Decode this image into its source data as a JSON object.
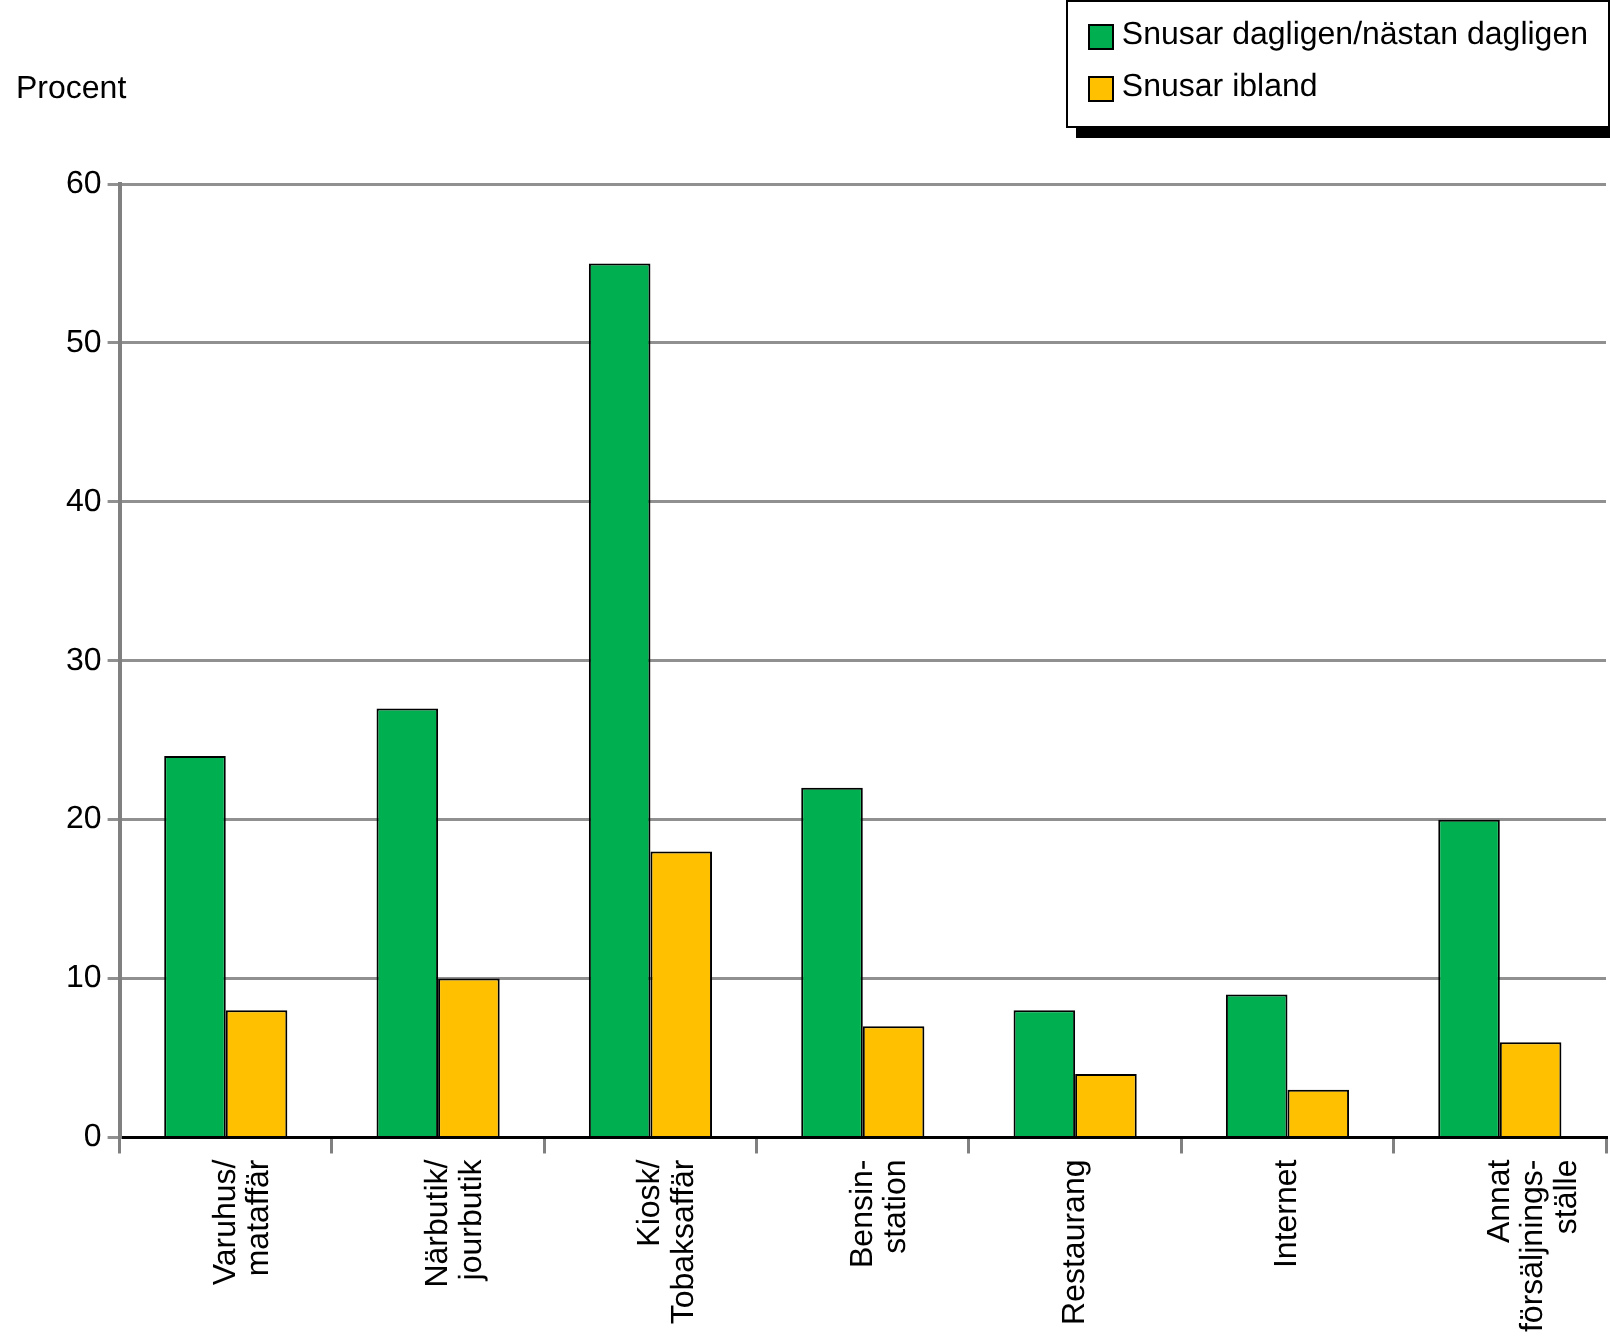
{
  "chart_data": {
    "type": "bar",
    "ylabel": "Procent",
    "categories": [
      "Varuhus/\nmataffär",
      "Närbutik/\njourbutik",
      "Kiosk/\nTobaksaffär",
      "Bensin-\nstation",
      "Restaurang",
      "Internet",
      "Annat\nförsäljnings-\nställe"
    ],
    "series": [
      {
        "name": "Snusar dagligen/nästan dagligen",
        "color": "#00b050",
        "values": [
          24,
          27,
          55,
          22,
          8,
          9,
          20
        ]
      },
      {
        "name": "Snusar ibland",
        "color": "#ffc000",
        "values": [
          8,
          10,
          18,
          7,
          4,
          3,
          6
        ]
      }
    ],
    "ylim": [
      0,
      60
    ],
    "yticks": [
      0,
      10,
      20,
      30,
      40,
      50,
      60
    ],
    "grid": "y",
    "legend": "top right"
  }
}
